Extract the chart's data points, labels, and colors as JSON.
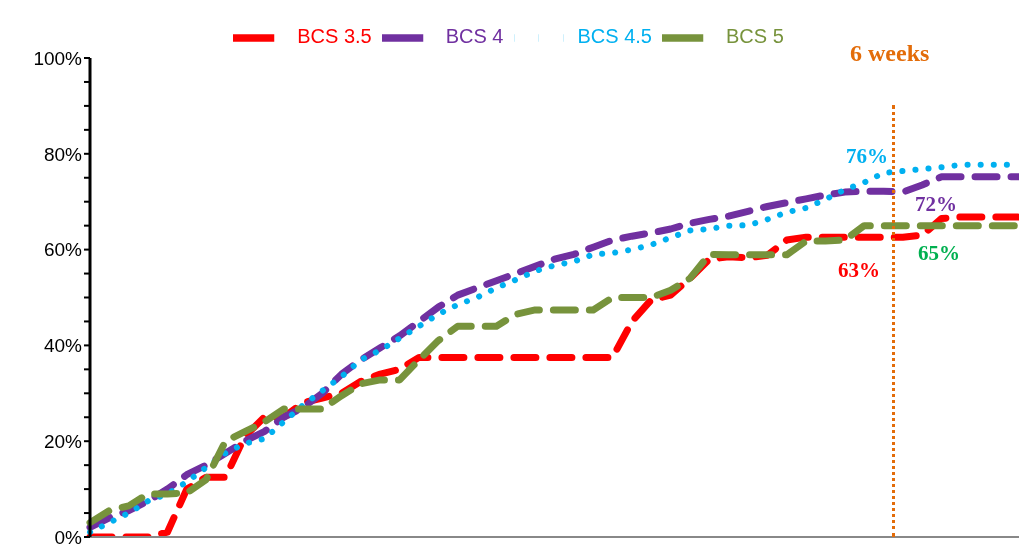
{
  "chart_data": {
    "type": "line",
    "categories": [
      null,
      null,
      null,
      null,
      null,
      null,
      null,
      null,
      null,
      null,
      null,
      null,
      null,
      null,
      null,
      null,
      null,
      null,
      null,
      null,
      null,
      null,
      null,
      null,
      null,
      null,
      null,
      null,
      null,
      null,
      null,
      null,
      null,
      null,
      null,
      null,
      null,
      null,
      null,
      null,
      null,
      null,
      null,
      null,
      null,
      null,
      null,
      null,
      null
    ],
    "series": [
      {
        "name": "BCS 3.5",
        "color": "#ff0000",
        "line_style": "dashed",
        "values": [
          0,
          0,
          0,
          0,
          1,
          10,
          12.5,
          12.5,
          21,
          25,
          25,
          28,
          29,
          30,
          32.5,
          34,
          35,
          37.5,
          37.5,
          37.5,
          37.5,
          37.5,
          37.5,
          37.5,
          37.5,
          37.5,
          37.5,
          37.5,
          45,
          49.5,
          50.5,
          54,
          58,
          58.5,
          58.3,
          58.8,
          62,
          62.6,
          62.6,
          62.6,
          62.6,
          62.6,
          62.6,
          63,
          66.5,
          66.8,
          66.8,
          66.8,
          66.8
        ]
      },
      {
        "name": "BCS 4",
        "color": "#7030a0",
        "line_style": "dashed",
        "values": [
          2,
          4,
          5.5,
          7.5,
          10,
          13,
          15,
          17.5,
          20,
          22,
          25,
          27,
          30,
          34,
          37,
          39.5,
          42,
          45,
          48,
          50.5,
          52,
          53.5,
          55,
          56.5,
          58,
          59,
          60.5,
          62,
          62.8,
          63.5,
          64.3,
          65.5,
          66.3,
          67,
          68,
          69,
          69.8,
          70.6,
          71.4,
          72,
          72.2,
          72.2,
          72,
          73.5,
          75.2,
          75.2,
          75.2,
          75.2,
          75.2
        ]
      },
      {
        "name": "BCS 4.5",
        "color": "#00b0f0",
        "line_style": "dotted",
        "values": [
          1,
          3,
          5,
          7.5,
          9,
          11.5,
          14.5,
          17.5,
          19.5,
          20.5,
          24,
          27.5,
          30.5,
          33.5,
          37,
          39,
          41.5,
          44,
          46.5,
          48.5,
          50,
          52,
          53.7,
          55.5,
          56.7,
          57.5,
          59,
          59.3,
          60,
          61,
          62.5,
          64,
          64.3,
          65,
          65.1,
          66.3,
          67.8,
          68.7,
          70.5,
          72.5,
          74,
          76,
          76.4,
          76.8,
          77.2,
          77.7,
          77.7,
          77.7,
          77.7
        ]
      },
      {
        "name": "BCS 5",
        "color": "#77933c",
        "line_style": "dashed",
        "values": [
          3,
          5.5,
          6.5,
          9,
          9,
          9.2,
          12,
          20,
          22,
          24,
          26.7,
          26.7,
          26.7,
          29.5,
          32,
          32.8,
          32.8,
          37,
          41,
          44,
          44,
          44,
          46.5,
          47.4,
          47.4,
          47.4,
          47.4,
          50,
          50,
          50,
          51.5,
          54,
          59,
          58.9,
          58.9,
          58.9,
          58.9,
          61.8,
          61.8,
          62,
          65,
          65,
          65,
          65,
          65,
          65,
          65,
          65,
          65
        ]
      }
    ],
    "ylim": [
      0,
      100
    ],
    "yticks": [
      {
        "value": 0,
        "label": "0%"
      },
      {
        "value": 5,
        "label": null
      },
      {
        "value": 10,
        "label": null
      },
      {
        "value": 15,
        "label": null
      },
      {
        "value": 20,
        "label": "20%"
      },
      {
        "value": 25,
        "label": null
      },
      {
        "value": 30,
        "label": null
      },
      {
        "value": 35,
        "label": null
      },
      {
        "value": 40,
        "label": "40%"
      },
      {
        "value": 45,
        "label": null
      },
      {
        "value": 50,
        "label": null
      },
      {
        "value": 55,
        "label": null
      },
      {
        "value": 60,
        "label": "60%"
      },
      {
        "value": 65,
        "label": null
      },
      {
        "value": 70,
        "label": null
      },
      {
        "value": 75,
        "label": null
      },
      {
        "value": 80,
        "label": "80%"
      },
      {
        "value": 85,
        "label": null
      },
      {
        "value": 90,
        "label": null
      },
      {
        "value": 95,
        "label": null
      },
      {
        "value": 100,
        "label": "100%"
      }
    ],
    "annotations": [
      "6 weeks",
      "76%",
      "72%",
      "63%",
      "65%"
    ],
    "grid": false,
    "legend": "top",
    "marker": "none",
    "tick_labels": "y"
  }
}
